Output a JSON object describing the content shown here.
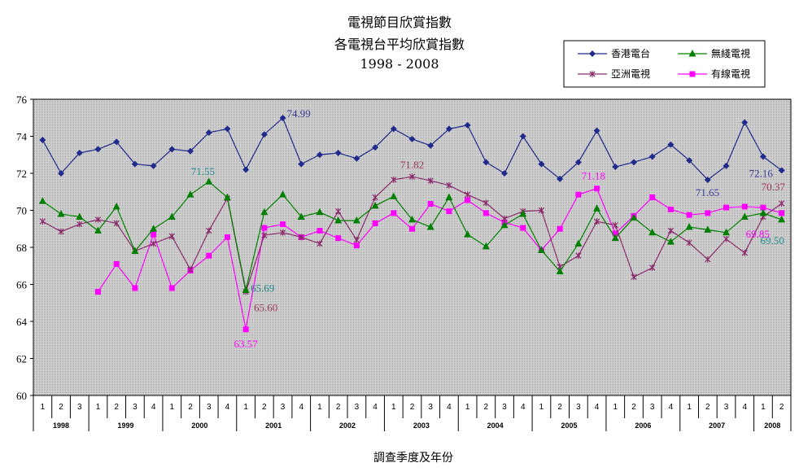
{
  "chart_data": {
    "type": "line",
    "title": [
      "電視節目欣賞指數",
      "各電視台平均欣賞指數",
      "1998 - 2008"
    ],
    "xlabel": "調查季度及年份",
    "ylabel": "",
    "ylim": [
      60,
      76
    ],
    "yticks": [
      "60",
      "62",
      "64",
      "66",
      "68",
      "70",
      "72",
      "74",
      "76"
    ],
    "grid": false,
    "legend_position": "top-right",
    "x_quarters": [
      "1",
      "2",
      "3",
      "1",
      "2",
      "3",
      "4",
      "1",
      "2",
      "3",
      "4",
      "1",
      "2",
      "3",
      "4",
      "1",
      "2",
      "3",
      "4",
      "1",
      "2",
      "3",
      "4",
      "1",
      "2",
      "3",
      "4",
      "1",
      "2",
      "3",
      "4",
      "1",
      "2",
      "3",
      "4",
      "1",
      "2",
      "3",
      "4",
      "1",
      "2"
    ],
    "x_years": [
      {
        "label": "1998",
        "span": 3
      },
      {
        "label": "1999",
        "span": 4
      },
      {
        "label": "2000",
        "span": 4
      },
      {
        "label": "2001",
        "span": 4
      },
      {
        "label": "2002",
        "span": 4
      },
      {
        "label": "2003",
        "span": 4
      },
      {
        "label": "2004",
        "span": 4
      },
      {
        "label": "2005",
        "span": 4
      },
      {
        "label": "2006",
        "span": 4
      },
      {
        "label": "2007",
        "span": 4
      },
      {
        "label": "2008",
        "span": 2
      }
    ],
    "series": [
      {
        "name": "香港電台",
        "color": "#1f2a8c",
        "marker": "diamond",
        "values": [
          73.8,
          72.0,
          73.1,
          73.3,
          73.7,
          72.5,
          72.4,
          73.3,
          73.2,
          74.2,
          74.4,
          72.2,
          74.1,
          74.99,
          72.5,
          73.0,
          73.1,
          72.8,
          73.4,
          74.4,
          73.85,
          73.5,
          74.4,
          74.6,
          72.6,
          72.0,
          74.0,
          72.5,
          71.7,
          72.6,
          74.3,
          72.35,
          72.6,
          72.9,
          73.55,
          72.7,
          71.65,
          72.4,
          74.75,
          72.9,
          72.16
        ]
      },
      {
        "name": "無綫電視",
        "color": "#008000",
        "marker": "triangle",
        "values": [
          70.5,
          69.8,
          69.65,
          68.9,
          70.2,
          67.8,
          69.0,
          69.65,
          70.85,
          71.55,
          70.7,
          65.69,
          69.9,
          70.85,
          69.65,
          69.9,
          69.45,
          69.45,
          70.25,
          70.75,
          69.5,
          69.1,
          70.7,
          68.7,
          68.05,
          69.2,
          69.8,
          67.85,
          66.7,
          68.2,
          70.1,
          68.5,
          69.6,
          68.8,
          68.3,
          69.1,
          68.95,
          68.8,
          69.65,
          69.85,
          69.5
        ]
      },
      {
        "name": "亞洲電視",
        "color": "#8b2a6b",
        "marker": "star",
        "values": [
          69.4,
          68.85,
          69.25,
          69.5,
          69.3,
          67.8,
          68.2,
          68.6,
          66.8,
          68.9,
          70.65,
          65.6,
          68.65,
          68.8,
          68.55,
          68.2,
          69.95,
          68.4,
          70.7,
          71.65,
          71.82,
          71.6,
          71.35,
          70.85,
          70.4,
          69.55,
          69.95,
          70.0,
          66.95,
          67.55,
          69.4,
          69.2,
          66.4,
          66.9,
          68.9,
          68.25,
          67.35,
          68.45,
          67.7,
          69.65,
          70.37
        ]
      },
      {
        "name": "有線電視",
        "color": "#ff00ff",
        "marker": "square",
        "values": [
          null,
          null,
          null,
          65.6,
          67.1,
          65.8,
          68.7,
          65.8,
          66.75,
          67.55,
          68.55,
          63.57,
          69.05,
          69.25,
          68.55,
          68.9,
          68.5,
          68.1,
          69.3,
          69.85,
          69.0,
          70.35,
          69.95,
          70.55,
          69.85,
          69.35,
          69.05,
          67.85,
          69.0,
          70.85,
          71.18,
          68.75,
          69.7,
          70.7,
          70.05,
          69.75,
          69.85,
          70.15,
          70.2,
          70.15,
          69.85
        ]
      }
    ],
    "annotations": [
      {
        "text": "74.99",
        "series": 0,
        "index": 13,
        "pos": "right"
      },
      {
        "text": "71.65",
        "series": 0,
        "index": 36,
        "pos": "below-left"
      },
      {
        "text": "72.16",
        "series": 0,
        "index": 40,
        "pos": "below-left"
      },
      {
        "text": "71.55",
        "series": 1,
        "index": 9,
        "pos": "above-left"
      },
      {
        "text": "65.69",
        "series": 1,
        "index": 11,
        "pos": "right"
      },
      {
        "text": "69.50",
        "series": 1,
        "index": 40,
        "pos": "below-left"
      },
      {
        "text": "71.82",
        "series": 2,
        "index": 20,
        "pos": "above"
      },
      {
        "text": "65.60",
        "series": 2,
        "index": 11,
        "pos": "below-right"
      },
      {
        "text": "70.37",
        "series": 2,
        "index": 40,
        "pos": "above-left"
      },
      {
        "text": "63.57",
        "series": 3,
        "index": 11,
        "pos": "below"
      },
      {
        "text": "71.18",
        "series": 3,
        "index": 30,
        "pos": "above-left"
      },
      {
        "text": "69.85",
        "series": 3,
        "index": 40,
        "pos": "below-left"
      }
    ],
    "annotation_colors": [
      "#3b3b9b",
      "#1f8a8a",
      "#9b3b5b",
      "#ff00ff"
    ]
  }
}
